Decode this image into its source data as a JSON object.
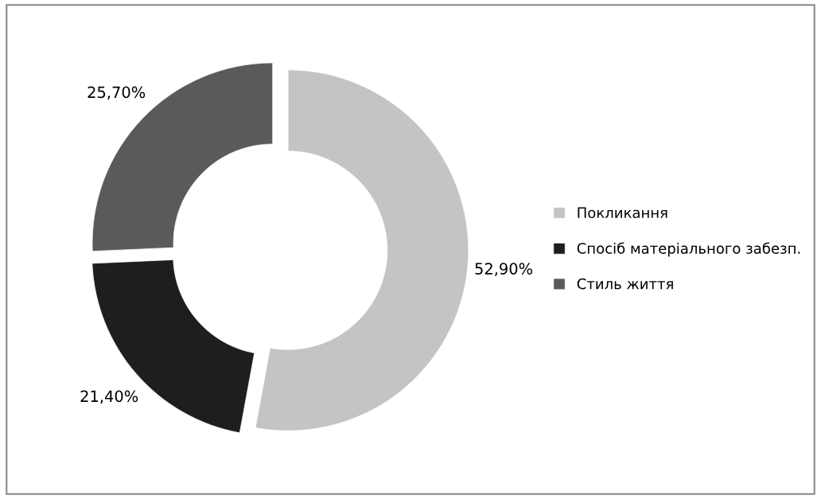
{
  "chart_data": {
    "type": "donut",
    "categories": [
      "Покликання",
      "Спосіб матеріального забезп.",
      "Стиль життя"
    ],
    "values": [
      52.9,
      21.4,
      25.7
    ],
    "colors": [
      "#c4c4c4",
      "#1e1e1e",
      "#5a5a5a"
    ],
    "value_labels": [
      "52,90%",
      "21,40%",
      "25,70%"
    ],
    "legend": "right"
  }
}
